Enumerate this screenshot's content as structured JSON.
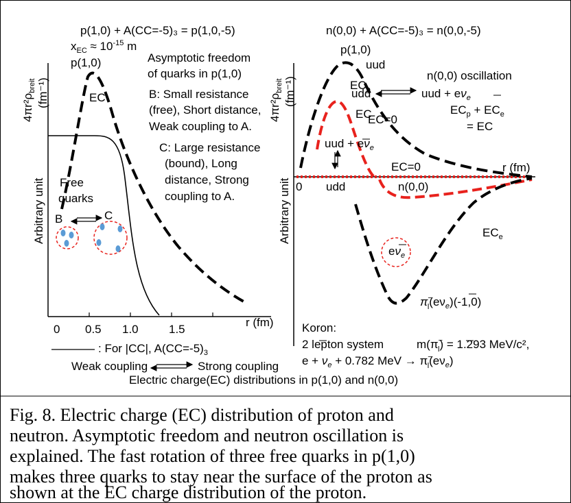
{
  "left_panel": {
    "eq1": "p(1,0) + A(CC=-5)₃ = p(1,0,-5)",
    "xec": "x",
    "xec_sub": "EC",
    "xec_val": " ≈ 10",
    "xec_exp": "-15",
    "xec_unit": " m",
    "p10_label": "p(1,0)",
    "ec_label": "EC",
    "asym1": "Asymptotic freedom",
    "asym2": "of quarks in p(1,0)",
    "b_text": [
      "B: Small resistance",
      "(free), Short distance,",
      "Weak coupling to A."
    ],
    "c_text": [
      "C: Large resistance",
      "(bound), Long",
      "distance, Strong",
      "coupling to A."
    ],
    "ylabel_rho": "4πr²ρ",
    "ylabel_rho_sub": "breit",
    "ylabel_unit": "(fm⁻¹)",
    "ylabel_arb": "Arbitrary unit",
    "free_quarks": [
      "Free",
      "quarks"
    ],
    "b_label": "B",
    "c_label": "C",
    "xlabel": "r (fm)",
    "ticks": [
      "0",
      "0.5",
      "1.0",
      "1.5"
    ],
    "legend_text": ": For |CC|,  A(CC=-5)",
    "legend_sub": "3",
    "weak_coupling": "Weak coupling",
    "strong_coupling": "Strong coupling"
  },
  "right_panel": {
    "eq2": "n(0,0) + A(CC=-5)₃ = n(0,0,-5)",
    "p10_label": "p(1,0)",
    "uud_top": "uud",
    "ecp": "EC",
    "ecp_sub": "p",
    "ec_label": "EC",
    "osc_title": "n(0,0) oscillation",
    "osc_udd": "udd",
    "osc_uud": "uud + ",
    "osc_e": "e",
    "osc_nu": "ν",
    "osc_nu_sub": "e",
    "ec_zero_left": "EC=0",
    "sum_line_a": "EC",
    "sum_line_a_sub1": "p",
    "sum_line_b": " + EC",
    "sum_line_b_sub": "e",
    "sum_line_c": "= EC",
    "uud_mid": "uud + ",
    "ylabel_rho": "4πr²ρ",
    "ylabel_rho_sub": "breit",
    "ylabel_unit": "(fm⁻¹)",
    "ylabel_arb": "Arbitrary unit",
    "zero": "0",
    "udd": "udd",
    "ec_zero_axis": "EC=0",
    "n00": "n(0,0)",
    "xlabel": "r (fm)",
    "ece": "EC",
    "ece_sub": "e",
    "circle_e": "e",
    "circle_nu": "ν",
    "circle_nu_sub": "e",
    "pion": "π",
    "pion_sup": "−",
    "pion_sub": "l",
    "pion_rest": "(eν",
    "pion_rest_sub": "e",
    "pion_rest2": ")(-1,0)",
    "koron": "Koron:",
    "lepton": "2 lepton system",
    "mass_lhs": "m(π",
    "mass_sup": "−",
    "mass_sub": "l",
    "mass_rhs": ") = 1.293 MeV/c²,",
    "decay_a": "e + ",
    "decay_nu": "ν",
    "decay_nu_sub": "e",
    "decay_b": " + 0.782 MeV → π",
    "decay_sup": "−",
    "decay_sub": "l",
    "decay_c": "(eν",
    "decay_c_sub": "e",
    "decay_d": ")"
  },
  "bottom_label": "Electric charge(EC) distributions in p(1,0) and n(0,0)",
  "caption": [
    "Fig. 8. Electric charge (EC) distribution of proton and",
    "neutron. Asymptotic freedom and neutron oscillation is",
    "explained. The fast rotation of three free quarks in p(1,0)",
    "makes three quarks to stay near the surface of the proton  as",
    "shown at the EC charge distribution of the proton."
  ],
  "colors": {
    "black": "#000000",
    "red": "#e8221d",
    "blue": "#5b9bd5"
  }
}
